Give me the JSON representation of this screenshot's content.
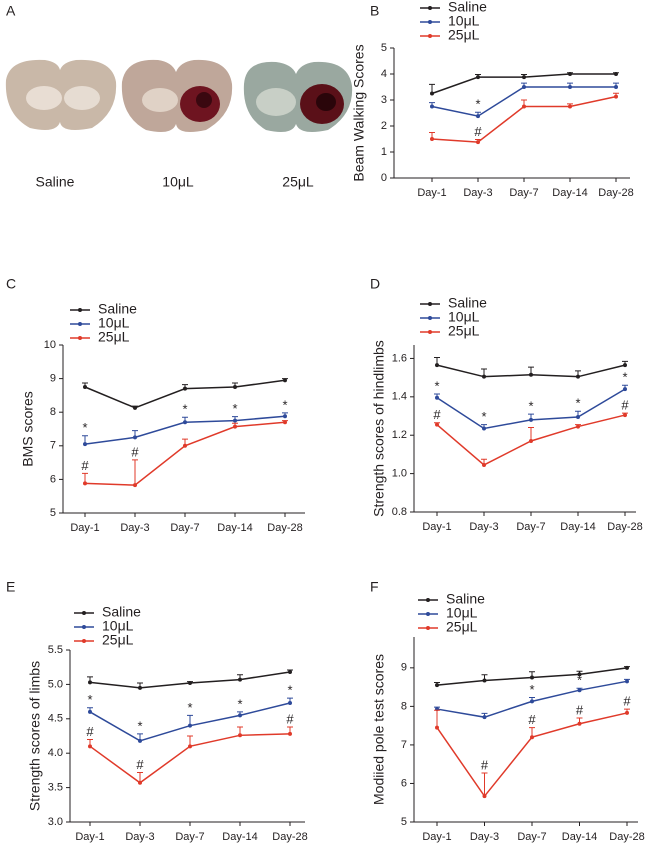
{
  "panel_a": {
    "label": "A",
    "captions": [
      "Saline",
      "10μL",
      "25μL"
    ]
  },
  "chart_data": [
    {
      "panel_label": "B",
      "type": "line",
      "y_label": "Beam Walking Scores",
      "categories": [
        "Day-1",
        "Day-3",
        "Day-7",
        "Day-14",
        "Day-28"
      ],
      "ylim": [
        0,
        5
      ],
      "yticks": [
        0,
        1,
        2,
        3,
        4,
        5
      ],
      "series": [
        {
          "name": "Saline",
          "color": "#231f20",
          "values": [
            3.25,
            3.88,
            3.88,
            4.0,
            4.0
          ],
          "errors": [
            0.35,
            0.1,
            0.1,
            0.05,
            0.05
          ],
          "annotations": [
            null,
            null,
            null,
            null,
            null
          ]
        },
        {
          "name": "10μL",
          "color": "#2e4a9a",
          "values": [
            2.75,
            2.38,
            3.5,
            3.5,
            3.5
          ],
          "errors": [
            0.15,
            0.15,
            0.15,
            0.15,
            0.15
          ],
          "annotations": [
            null,
            "*",
            null,
            null,
            null
          ]
        },
        {
          "name": "25μL",
          "color": "#e03a2a",
          "values": [
            1.5,
            1.38,
            2.75,
            2.75,
            3.13
          ],
          "errors": [
            0.25,
            0.1,
            0.25,
            0.1,
            0.13
          ],
          "annotations": [
            null,
            "#",
            null,
            null,
            null
          ]
        }
      ]
    },
    {
      "panel_label": "C",
      "type": "line",
      "y_label": "BMS scores",
      "categories": [
        "Day-1",
        "Day-3",
        "Day-7",
        "Day-14",
        "Day-28"
      ],
      "ylim": [
        5,
        10
      ],
      "yticks": [
        5,
        6,
        7,
        8,
        9,
        10
      ],
      "series": [
        {
          "name": "Saline",
          "color": "#231f20",
          "values": [
            8.75,
            8.13,
            8.7,
            8.75,
            8.95
          ],
          "errors": [
            0.12,
            0.05,
            0.12,
            0.12,
            0.05
          ],
          "annotations": [
            null,
            null,
            null,
            null,
            null
          ]
        },
        {
          "name": "10μL",
          "color": "#2e4a9a",
          "values": [
            7.05,
            7.25,
            7.7,
            7.75,
            7.88
          ],
          "errors": [
            0.25,
            0.2,
            0.15,
            0.12,
            0.1
          ],
          "annotations": [
            "*",
            null,
            "*",
            "*",
            "*"
          ]
        },
        {
          "name": "25μL",
          "color": "#e03a2a",
          "values": [
            5.88,
            5.83,
            7.0,
            7.57,
            7.7
          ],
          "errors": [
            0.3,
            0.75,
            0.2,
            0.1,
            0.05
          ],
          "annotations": [
            "#",
            "#",
            null,
            null,
            null
          ]
        }
      ]
    },
    {
      "panel_label": "D",
      "type": "line",
      "y_label": "Strength scores of hindlimbs",
      "categories": [
        "Day-1",
        "Day-3",
        "Day-7",
        "Day-14",
        "Day-28"
      ],
      "ylim": [
        0.8,
        1.67
      ],
      "yticks": [
        0.8,
        {
          "value": 1,
          "label": "1.0"
        },
        1.2,
        1.4,
        1.6
      ],
      "series": [
        {
          "name": "Saline",
          "color": "#231f20",
          "values": [
            1.565,
            1.505,
            1.515,
            1.505,
            1.565
          ],
          "errors": [
            0.04,
            0.04,
            0.04,
            0.03,
            0.02
          ],
          "annotations": [
            null,
            null,
            null,
            null,
            null
          ]
        },
        {
          "name": "10μL",
          "color": "#2e4a9a",
          "values": [
            1.395,
            1.235,
            1.28,
            1.295,
            1.44
          ],
          "errors": [
            0.02,
            0.02,
            0.03,
            0.03,
            0.02
          ],
          "annotations": [
            "*",
            "*",
            "*",
            "*",
            "*"
          ]
        },
        {
          "name": "25μL",
          "color": "#e03a2a",
          "values": [
            1.255,
            1.045,
            1.17,
            1.245,
            1.305
          ],
          "errors": [
            0.01,
            0.03,
            0.07,
            0.01,
            0.01
          ],
          "annotations": [
            "#",
            null,
            null,
            null,
            "#"
          ]
        }
      ]
    },
    {
      "panel_label": "E",
      "type": "line",
      "y_label": "Strength scores of limbs",
      "categories": [
        "Day-1",
        "Day-3",
        "Day-7",
        "Day-14",
        "Day-28"
      ],
      "ylim": [
        3,
        5.5
      ],
      "yticks": [
        {
          "value": 3,
          "label": "3.0"
        },
        3.5,
        {
          "value": 4,
          "label": "4.0"
        },
        4.5,
        {
          "value": 5,
          "label": "5.0"
        },
        5.5
      ],
      "series": [
        {
          "name": "Saline",
          "color": "#231f20",
          "values": [
            5.03,
            4.95,
            5.02,
            5.07,
            5.18
          ],
          "errors": [
            0.08,
            0.07,
            0.02,
            0.07,
            0.03
          ],
          "annotations": [
            null,
            null,
            null,
            null,
            null
          ]
        },
        {
          "name": "10μL",
          "color": "#2e4a9a",
          "values": [
            4.6,
            4.18,
            4.4,
            4.55,
            4.73
          ],
          "errors": [
            0.06,
            0.1,
            0.15,
            0.05,
            0.07
          ],
          "annotations": [
            "*",
            "*",
            "*",
            "*",
            "*"
          ]
        },
        {
          "name": "25μL",
          "color": "#e03a2a",
          "values": [
            4.1,
            3.57,
            4.1,
            4.26,
            4.28
          ],
          "errors": [
            0.1,
            0.15,
            0.15,
            0.12,
            0.1
          ],
          "annotations": [
            "#",
            "#",
            null,
            null,
            "#"
          ]
        }
      ]
    },
    {
      "panel_label": "F",
      "type": "line",
      "y_label": "Modiied pole test scores",
      "categories": [
        "Day-1",
        "Day-3",
        "Day-7",
        "Day-14",
        "Day-28"
      ],
      "ylim": [
        5,
        9.8
      ],
      "yticks": [
        5,
        6,
        7,
        8,
        9
      ],
      "series": [
        {
          "name": "Saline",
          "color": "#231f20",
          "values": [
            8.55,
            8.67,
            8.75,
            8.83,
            9.0
          ],
          "errors": [
            0.07,
            0.15,
            0.15,
            0.08,
            0.03
          ],
          "annotations": [
            null,
            null,
            null,
            null,
            null
          ]
        },
        {
          "name": "10μL",
          "color": "#2e4a9a",
          "values": [
            7.93,
            7.72,
            8.13,
            8.42,
            8.65
          ],
          "errors": [
            0.05,
            0.1,
            0.1,
            0.05,
            0.05
          ],
          "annotations": [
            null,
            null,
            "*",
            "*",
            null
          ]
        },
        {
          "name": "25μL",
          "color": "#e03a2a",
          "values": [
            7.45,
            5.67,
            7.2,
            7.55,
            7.83
          ],
          "errors": [
            0.45,
            0.6,
            0.25,
            0.15,
            0.1
          ],
          "annotations": [
            null,
            "#",
            "#",
            "#",
            "#"
          ]
        }
      ]
    }
  ]
}
